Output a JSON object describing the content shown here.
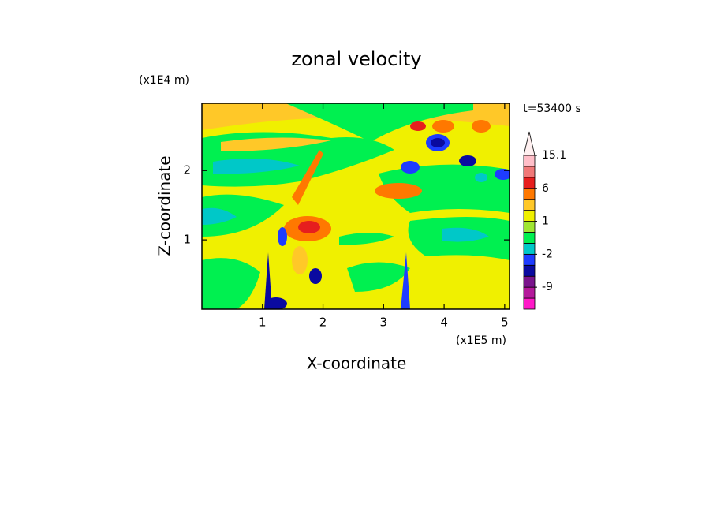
{
  "chart_data": {
    "type": "contour",
    "title": "zonal velocity",
    "x_label": "X-coordinate",
    "y_label": "Z-coordinate",
    "x_unit": "(x1E5 m)",
    "y_unit": "(x1E4 m)",
    "time_label": "t=53400 s",
    "xlim": [
      0,
      5.08
    ],
    "ylim": [
      0,
      2.97
    ],
    "xticks": [
      1,
      2,
      3,
      4,
      5
    ],
    "yticks": [
      1,
      2
    ],
    "colorbar": {
      "levels": [
        -15,
        -12,
        -9,
        -6,
        -3,
        -2,
        -1,
        0,
        1,
        2,
        3,
        6,
        9,
        12,
        15.1
      ],
      "colors": [
        "#ff19c8",
        "#b4199b",
        "#7a148c",
        "#0a0aa0",
        "#1e3cff",
        "#00c8c8",
        "#00f050",
        "#a0e632",
        "#f0f000",
        "#ffc828",
        "#ff7800",
        "#e61e1e",
        "#f07878",
        "#ffbec8"
      ],
      "extend_color": "#fff0f0",
      "ticks": [
        -9,
        -2,
        1,
        6,
        15.1
      ]
    }
  }
}
